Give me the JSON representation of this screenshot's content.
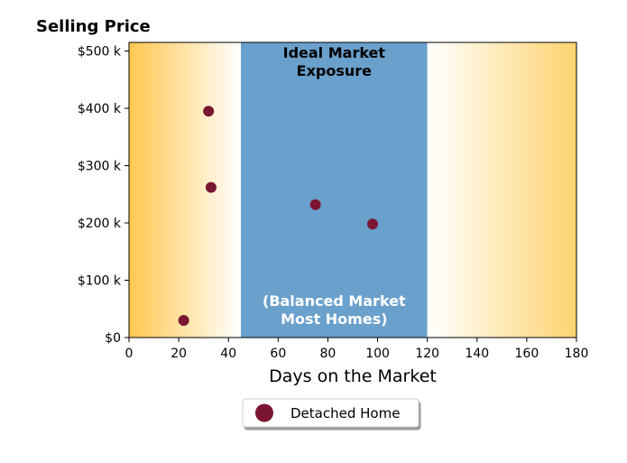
{
  "chart_data": {
    "type": "scatter",
    "y_title": "Selling Price",
    "xlabel": "Days on the Market",
    "xlim": [
      0,
      180
    ],
    "ylim": [
      0,
      515000
    ],
    "x_ticks": [
      0,
      20,
      40,
      60,
      80,
      100,
      120,
      140,
      160,
      180
    ],
    "x_tick_labels": [
      "0",
      "20",
      "40",
      "60",
      "80",
      "100",
      "120",
      "140",
      "160",
      "180"
    ],
    "y_ticks": [
      0,
      100000,
      200000,
      300000,
      400000,
      500000
    ],
    "y_tick_labels": [
      "$0",
      "$100 k",
      "$200 k",
      "$300 k",
      "$400 k",
      "$500 k"
    ],
    "grid": false,
    "bands": [
      {
        "x_range": [
          0,
          45
        ],
        "fill": "gradient",
        "from_color": "#ffc850",
        "to_color": "#ffffff"
      },
      {
        "x_range": [
          45,
          120
        ],
        "fill": "solid",
        "color": "#6aa0cc",
        "top_label": "Ideal Market\nExposure",
        "top_label_color": "#000000",
        "bottom_label": "(Balanced Market\nMost Homes)",
        "bottom_label_color": "#ffffff"
      },
      {
        "x_range": [
          120,
          180
        ],
        "fill": "gradient",
        "from_color": "#ffffff",
        "to_color": "#ffd470"
      }
    ],
    "series": [
      {
        "name": "Detached Home",
        "color": "#7a1631",
        "points": [
          {
            "x": 22,
            "y": 30000
          },
          {
            "x": 32,
            "y": 395000
          },
          {
            "x": 33,
            "y": 262000
          },
          {
            "x": 75,
            "y": 232000
          },
          {
            "x": 98,
            "y": 198000
          }
        ]
      }
    ],
    "legend": {
      "position": "bottom-center",
      "entries": [
        "Detached Home"
      ]
    }
  }
}
